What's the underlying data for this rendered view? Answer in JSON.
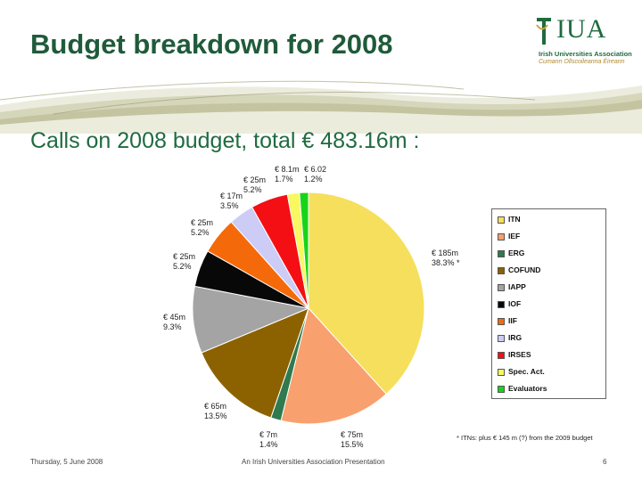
{
  "slide": {
    "title": "Budget breakdown for 2008",
    "subtitle": "Calls on 2008 budget, total € 483.16m :",
    "logo_text": "IUA",
    "logo_line1": "Irish Universities Association",
    "logo_line2": "Cumann Ollscoileanna Éireann",
    "footnote": "* ITNs: plus € 145 m (?) from the 2009 budget",
    "footer_date": "Thursday, 5 June 2008",
    "footer_center": "An Irish Universities Association Presentation",
    "page_number": "6"
  },
  "colors": {
    "title": "#1f5b3a",
    "accent": "#1f6b3f"
  },
  "chart_data": {
    "type": "pie",
    "title": "",
    "legend_position": "right",
    "start": "top, clockwise",
    "slices": [
      {
        "name": "ITN",
        "value": 185,
        "amount": "€ 185m",
        "percent": "38.3% *",
        "color": "#f6df5c"
      },
      {
        "name": "IEF",
        "value": 75,
        "amount": "€ 75m",
        "percent": "15.5%",
        "color": "#f8a06e"
      },
      {
        "name": "ERG",
        "value": 7,
        "amount": "€ 7m",
        "percent": "1.4%",
        "color": "#2f7a4e"
      },
      {
        "name": "COFUND",
        "value": 65,
        "amount": "€ 65m",
        "percent": "13.5%",
        "color": "#8c6200"
      },
      {
        "name": "IAPP",
        "value": 45,
        "amount": "€ 45m",
        "percent": "9.3%",
        "color": "#a4a4a4"
      },
      {
        "name": "IOF",
        "value": 25,
        "amount": "€ 25m",
        "percent": "5.2%",
        "color": "#080808"
      },
      {
        "name": "IIF",
        "value": 25,
        "amount": "€ 25m",
        "percent": "5.2%",
        "color": "#f46a0a"
      },
      {
        "name": "IRG",
        "value": 17,
        "amount": "€ 17m",
        "percent": "3.5%",
        "color": "#ccccf6"
      },
      {
        "name": "IRSES",
        "value": 25,
        "amount": "€ 25m",
        "percent": "5.2%",
        "color": "#f40f15"
      },
      {
        "name": "Spec. Act.",
        "value": 8.1,
        "amount": "€ 8.1m",
        "percent": "1.7%",
        "color": "#f8f860"
      },
      {
        "name": "Evaluators",
        "value": 6.02,
        "amount": "€ 6.02",
        "percent": "1.2%",
        "color": "#18d418"
      }
    ]
  }
}
